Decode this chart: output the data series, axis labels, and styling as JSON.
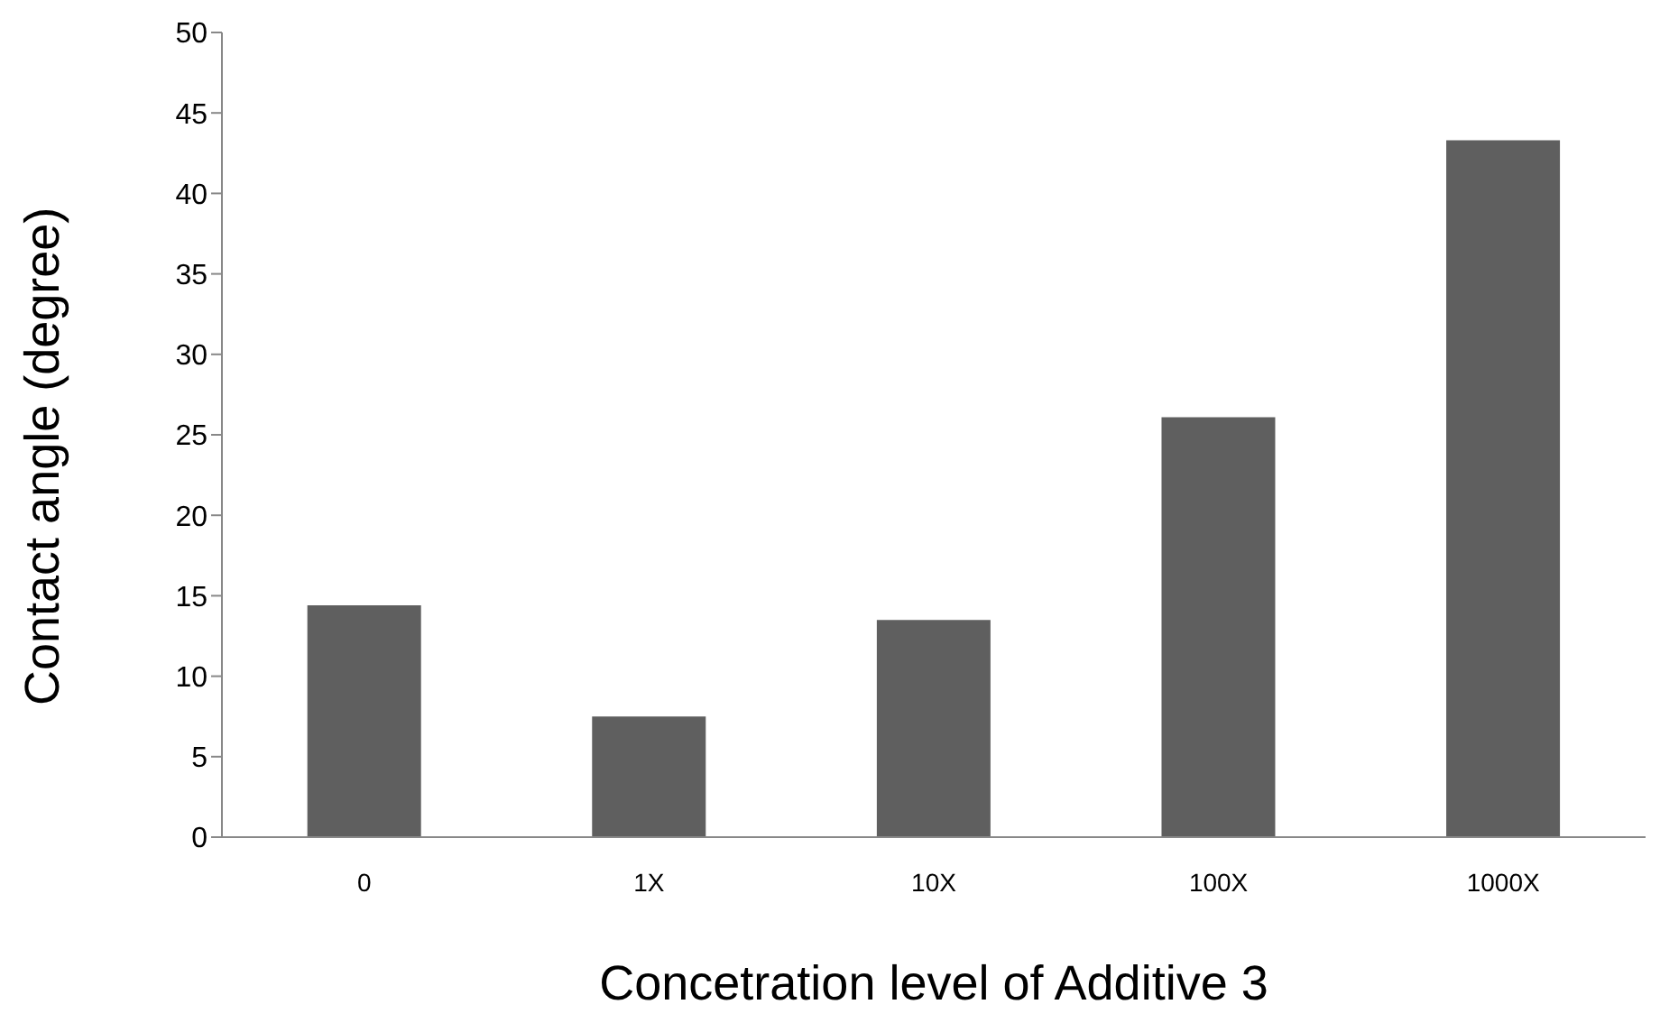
{
  "chart_data": {
    "type": "bar",
    "xlabel": "Concetration level of Additive 3",
    "ylabel": "Contact angle (degree)",
    "categories": [
      "0",
      "1X",
      "10X",
      "100X",
      "1000X"
    ],
    "values": [
      14.4,
      7.5,
      13.5,
      26.1,
      43.3
    ],
    "color": "#5f5f5f",
    "ylim": [
      0,
      50
    ],
    "yticks": [
      0,
      5,
      10,
      15,
      20,
      25,
      30,
      35,
      40,
      45,
      50
    ],
    "grid": false,
    "legend": false
  }
}
